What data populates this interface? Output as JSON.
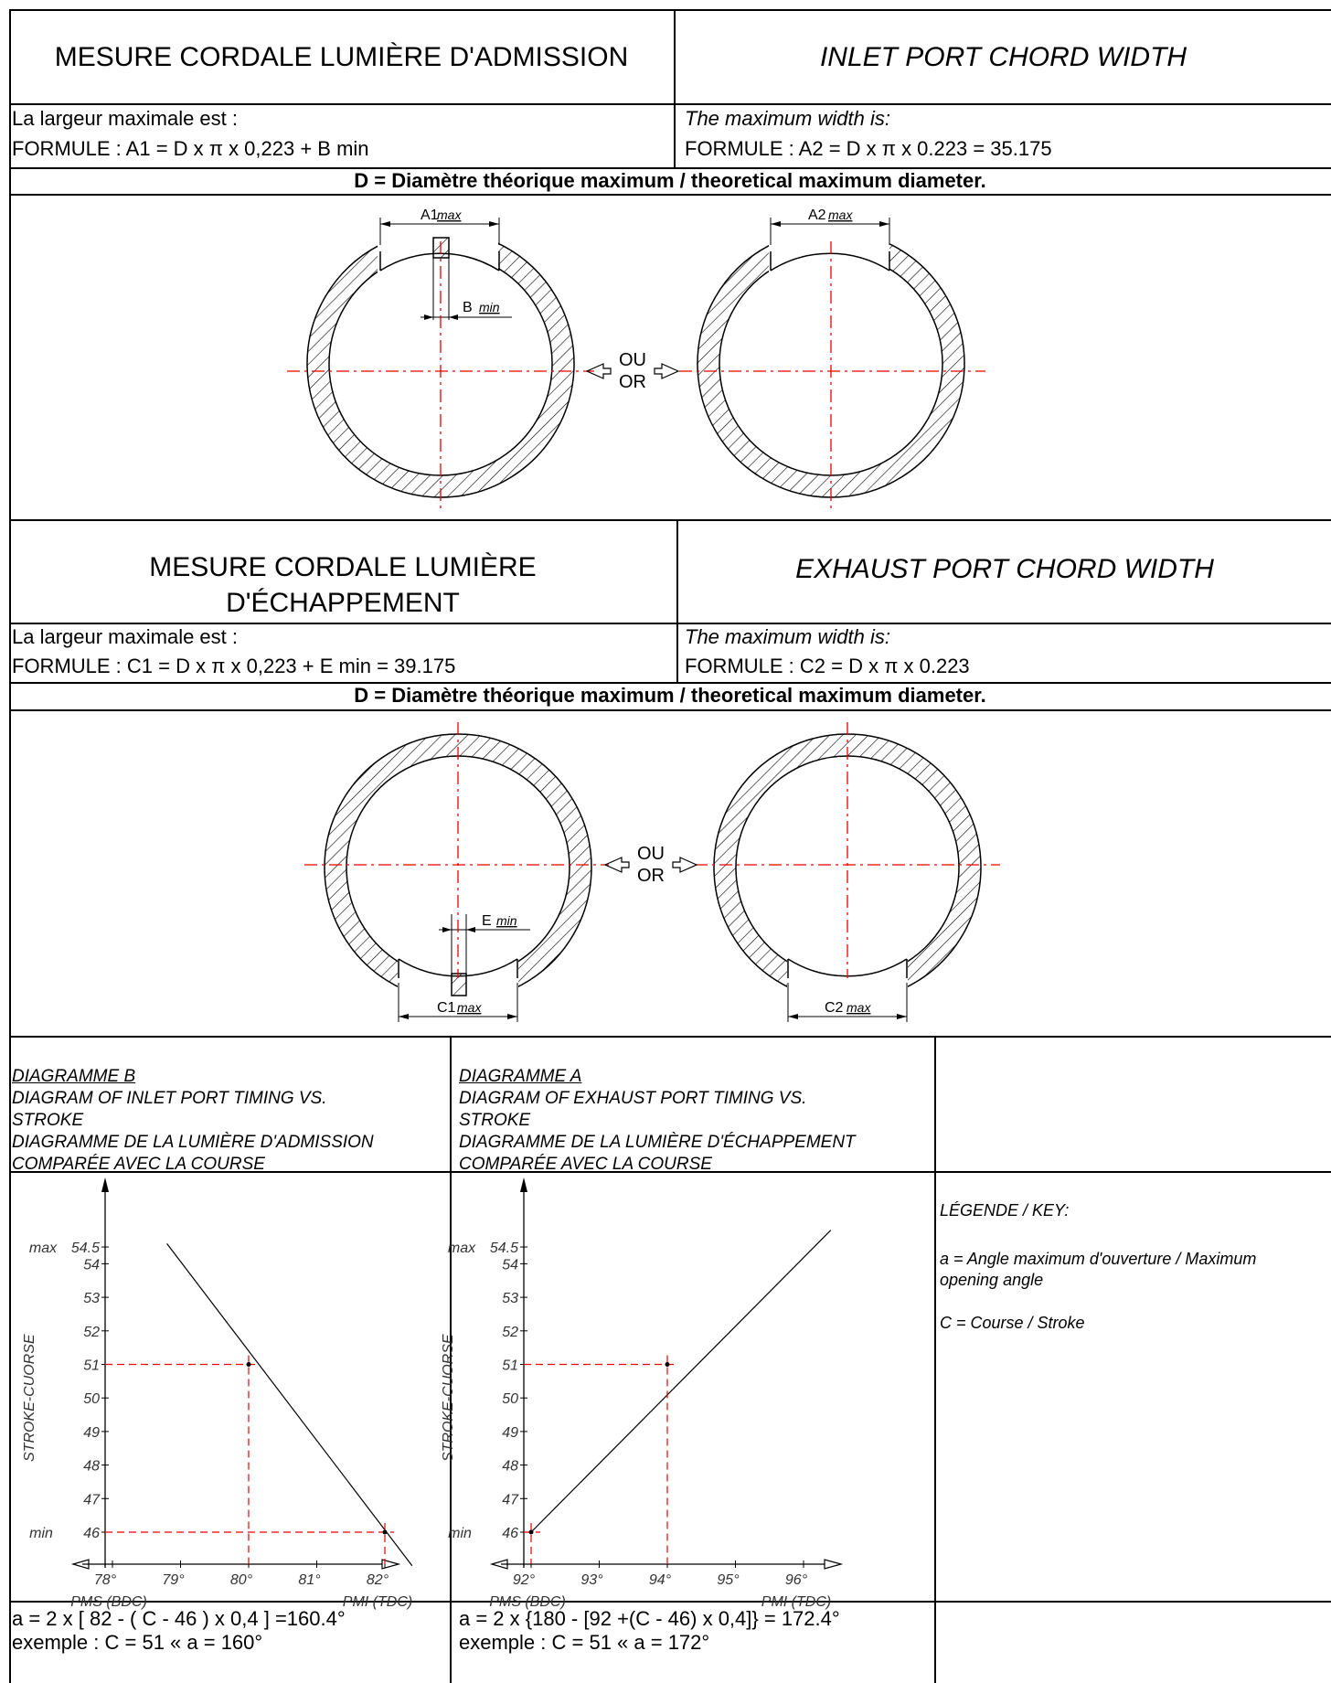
{
  "inlet": {
    "title_fr": "MESURE CORDALE LUMIÈRE D'ADMISSION",
    "title_en": "INLET PORT CHORD WIDTH",
    "width_fr": "La largeur maximale est :",
    "formula_fr": "FORMULE : A1 = D x π x 0,223 + B min",
    "width_en": "The maximum width is:",
    "formula_en": "FORMULE : A2 = D x π x 0.223 = 35.175",
    "definition": "D = Diamètre théorique maximum / theoretical maximum diameter.",
    "label_a1": "A1",
    "label_a2": "A2",
    "label_b": "B",
    "word_max": "max",
    "word_min": "min",
    "ou": "OU",
    "or": "OR"
  },
  "exhaust": {
    "title_fr_line1": "MESURE CORDALE LUMIÈRE",
    "title_fr_line2": "D'ÉCHAPPEMENT",
    "title_en": "EXHAUST PORT CHORD WIDTH",
    "width_fr": "La largeur maximale est :",
    "formula_fr": "FORMULE : C1 = D x π x 0,223 + E min = 39.175",
    "width_en": "The maximum width is:",
    "formula_en": "FORMULE : C2 = D x π x 0.223",
    "definition": "D = Diamètre théorique maximum / theoretical maximum diameter.",
    "label_c1": "C1",
    "label_c2": "C2",
    "label_e": "E",
    "word_max": "max",
    "word_min": "min",
    "ou": "OU",
    "or": "OR"
  },
  "diagram_b": {
    "heading": "DIAGRAMME B",
    "line1": "DIAGRAM OF INLET PORT TIMING VS.",
    "line2": "STROKE",
    "line3": "DIAGRAMME DE LA LUMIÈRE D'ADMISSION",
    "line4": "COMPARÉE AVEC LA COURSE"
  },
  "diagram_a": {
    "heading": "DIAGRAMME A",
    "line1": "DIAGRAM OF EXHAUST PORT TIMING VS.",
    "line2": "STROKE",
    "line3": "DIAGRAMME DE LA LUMIÈRE D'ÉCHAPPEMENT",
    "line4": "COMPARÉE AVEC LA COURSE"
  },
  "legend": {
    "title": "LÉGENDE / KEY:",
    "line1": "a = Angle maximum d'ouverture / Maximum",
    "line2": "opening angle",
    "line3": "C = Course / Stroke"
  },
  "formulas": {
    "b_formula": "a = 2 x [ 82 - ( C - 46 ) x 0,4 ] =160.4°",
    "b_example": "exemple : C = 51 « a = 160°",
    "a_formula": "a = 2 x {180 - [92 +(C - 46) x 0,4]} = 172.4°",
    "a_example": "exemple : C = 51 « a = 172°"
  },
  "chart_data": [
    {
      "type": "line",
      "ylabel": "STROKE-CUORSE",
      "x_ticks": [
        "78°",
        "79°",
        "80°",
        "81°",
        "82°"
      ],
      "x_tick_values": [
        78,
        79,
        80,
        81,
        82
      ],
      "y_ticks": [
        "46",
        "47",
        "48",
        "49",
        "50",
        "51",
        "52",
        "53",
        "54",
        "54.5"
      ],
      "y_tick_values": [
        46,
        47,
        48,
        49,
        50,
        51,
        52,
        53,
        54,
        54.5
      ],
      "y_max_label": "max",
      "y_min_label": "min",
      "x_left_label": "PMS (BDC)",
      "x_right_label": "PMI (TDC)",
      "line": {
        "x": [
          78.8,
          82.4
        ],
        "y": [
          54.6,
          45.0
        ]
      },
      "points": [
        {
          "x": 80,
          "y": 51
        },
        {
          "x": 82,
          "y": 46
        }
      ],
      "xlim": [
        77.6,
        83.1
      ],
      "ylim": [
        45.2,
        55.2
      ]
    },
    {
      "type": "line",
      "ylabel": "STROKE-CUORSE",
      "x_ticks": [
        "92°",
        "93°",
        "94°",
        "95°",
        "96°"
      ],
      "x_tick_values": [
        92,
        93,
        94,
        95,
        96
      ],
      "y_ticks": [
        "46",
        "47",
        "48",
        "49",
        "50",
        "51",
        "52",
        "53",
        "54",
        "54.5"
      ],
      "y_tick_values": [
        46,
        47,
        48,
        49,
        50,
        51,
        52,
        53,
        54,
        54.5
      ],
      "y_max_label": "max",
      "y_min_label": "min",
      "x_left_label": "PMS (BDC)",
      "x_right_label": "PMI (TDC)",
      "line": {
        "x": [
          92,
          96.4
        ],
        "y": [
          46,
          55.0
        ]
      },
      "points": [
        {
          "x": 94,
          "y": 51
        },
        {
          "x": 92,
          "y": 46
        }
      ],
      "xlim": [
        91.6,
        97.1
      ],
      "ylim": [
        45.2,
        55.2
      ]
    }
  ]
}
